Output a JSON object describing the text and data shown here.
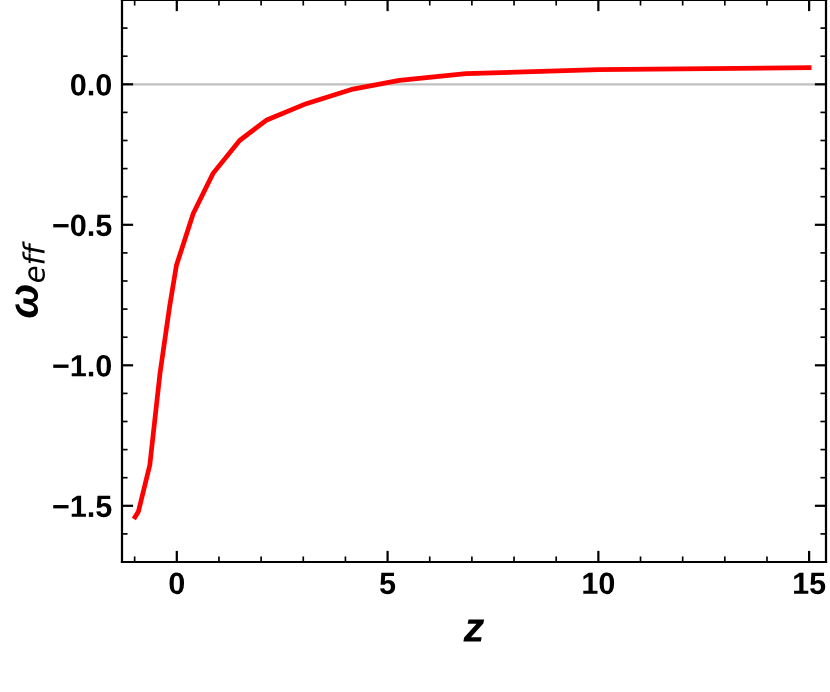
{
  "chart_data": {
    "type": "line",
    "xlabel": "z",
    "ylabel": "ω$_{eff}$",
    "x": [
      -0.99,
      -0.91,
      -0.64,
      -0.4,
      -0.17,
      -0.01,
      0.39,
      0.86,
      1.49,
      2.12,
      3.07,
      4.18,
      5.28,
      6.86,
      10.0,
      15.0
    ],
    "series": [
      {
        "color": "#ff0000",
        "values": [
          -1.54,
          -1.52,
          -1.355,
          -1.03,
          -0.79,
          -0.645,
          -0.46,
          -0.317,
          -0.2,
          -0.128,
          -0.069,
          -0.017,
          0.014,
          0.038,
          0.052,
          0.059
        ]
      }
    ],
    "xlim": [
      -1.3,
      15.4
    ],
    "ylim": [
      -1.7,
      0.3
    ],
    "xticks": [
      0,
      5,
      10,
      15
    ],
    "yticks": [
      {
        "value": -1.5,
        "label": "−1.5"
      },
      {
        "value": -1.0,
        "label": "−1.0"
      },
      {
        "value": -0.5,
        "label": "−0.5"
      },
      {
        "value": 0.0,
        "label": "0.0"
      }
    ],
    "ref_lines": [
      {
        "axis": "y",
        "value": 0,
        "color": "#c0c0c0"
      }
    ],
    "marker": "none",
    "line_style": "solid"
  }
}
